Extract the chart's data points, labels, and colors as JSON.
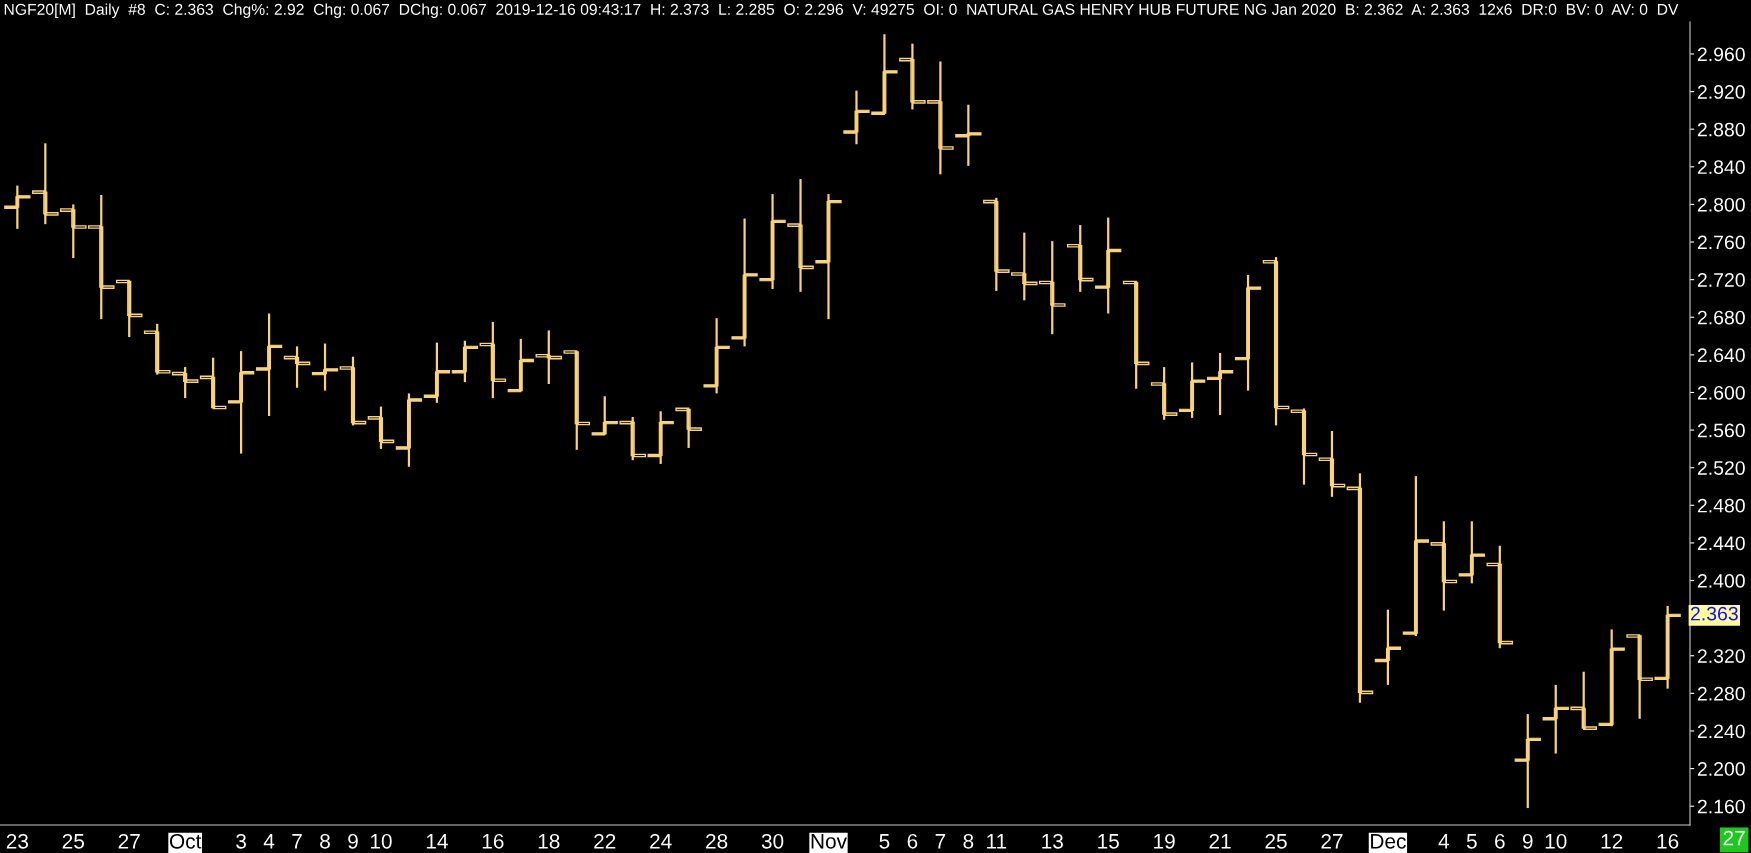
{
  "chart_data": {
    "type": "candlestick",
    "title": "NGF20[M]  Daily  #8  C: 2.363  Chg%: 2.92  Chg: 0.067  DChg: 0.067  2019-12-16 09:43:17  H: 2.373  L: 2.285  O: 2.296  V: 49275  OI: 0  NATURAL GAS HENRY HUB FUTURE NG Jan 2020  B: 2.362  A: 2.363  12x6  DR:0  BV: 0  AV: 0  DV",
    "categories": [
      "23",
      null,
      "25",
      null,
      "27",
      null,
      "Oct",
      null,
      "3",
      "4",
      "7",
      "8",
      "9",
      "10",
      null,
      "14",
      null,
      "16",
      null,
      "18",
      null,
      "22",
      null,
      "24",
      null,
      "28",
      null,
      "30",
      null,
      "Nov",
      null,
      "5",
      "6",
      "7",
      "8",
      "11",
      null,
      "13",
      null,
      "15",
      null,
      "19",
      null,
      "21",
      null,
      "25",
      null,
      "27",
      null,
      "Dec",
      null,
      "4",
      "5",
      "6",
      "9",
      "10",
      null,
      "12",
      null,
      "16"
    ],
    "ohlc": [
      [
        2.797,
        2.82,
        2.774,
        2.808
      ],
      [
        2.813,
        2.865,
        2.779,
        2.79
      ],
      [
        2.794,
        2.8,
        2.743,
        2.776
      ],
      [
        2.776,
        2.81,
        2.678,
        2.712
      ],
      [
        2.718,
        2.718,
        2.659,
        2.682
      ],
      [
        2.664,
        2.673,
        2.619,
        2.622
      ],
      [
        2.62,
        2.627,
        2.594,
        2.612
      ],
      [
        2.616,
        2.637,
        2.584,
        2.584
      ],
      [
        2.59,
        2.644,
        2.535,
        2.621
      ],
      [
        2.625,
        2.684,
        2.575,
        2.649
      ],
      [
        2.637,
        2.649,
        2.605,
        2.631
      ],
      [
        2.62,
        2.652,
        2.602,
        2.624
      ],
      [
        2.626,
        2.638,
        2.565,
        2.568
      ],
      [
        2.573,
        2.585,
        2.54,
        2.548
      ],
      [
        2.541,
        2.599,
        2.521,
        2.592
      ],
      [
        2.596,
        2.653,
        2.589,
        2.622
      ],
      [
        2.622,
        2.655,
        2.611,
        2.648
      ],
      [
        2.651,
        2.675,
        2.594,
        2.613
      ],
      [
        2.602,
        2.657,
        2.602,
        2.634
      ],
      [
        2.639,
        2.666,
        2.609,
        2.637
      ],
      [
        2.643,
        2.643,
        2.539,
        2.567
      ],
      [
        2.556,
        2.596,
        2.556,
        2.568
      ],
      [
        2.568,
        2.574,
        2.528,
        2.533
      ],
      [
        2.533,
        2.58,
        2.524,
        2.568
      ],
      [
        2.582,
        2.582,
        2.541,
        2.561
      ],
      [
        2.607,
        2.679,
        2.599,
        2.648
      ],
      [
        2.658,
        2.785,
        2.649,
        2.725
      ],
      [
        2.72,
        2.811,
        2.71,
        2.782
      ],
      [
        2.778,
        2.827,
        2.707,
        2.733
      ],
      [
        2.739,
        2.811,
        2.678,
        2.803
      ],
      [
        2.877,
        2.921,
        2.864,
        2.899
      ],
      [
        2.897,
        2.981,
        2.897,
        2.941
      ],
      [
        2.954,
        2.971,
        2.901,
        2.909
      ],
      [
        2.909,
        2.952,
        2.832,
        2.86
      ],
      [
        2.873,
        2.906,
        2.841,
        2.875
      ],
      [
        2.803,
        2.807,
        2.708,
        2.729
      ],
      [
        2.726,
        2.77,
        2.698,
        2.716
      ],
      [
        2.717,
        2.761,
        2.662,
        2.693
      ],
      [
        2.756,
        2.778,
        2.707,
        2.72
      ],
      [
        2.712,
        2.786,
        2.684,
        2.751
      ],
      [
        2.717,
        2.717,
        2.604,
        2.631
      ],
      [
        2.609,
        2.627,
        2.571,
        2.577
      ],
      [
        2.581,
        2.632,
        2.573,
        2.612
      ],
      [
        2.615,
        2.642,
        2.576,
        2.622
      ],
      [
        2.636,
        2.725,
        2.602,
        2.711
      ],
      [
        2.739,
        2.744,
        2.565,
        2.584
      ],
      [
        2.58,
        2.583,
        2.502,
        2.534
      ],
      [
        2.529,
        2.559,
        2.489,
        2.501
      ],
      [
        2.498,
        2.514,
        2.27,
        2.281
      ],
      [
        2.315,
        2.369,
        2.289,
        2.328
      ],
      [
        2.344,
        2.511,
        2.341,
        2.442
      ],
      [
        2.439,
        2.463,
        2.368,
        2.399
      ],
      [
        2.406,
        2.463,
        2.397,
        2.427
      ],
      [
        2.417,
        2.437,
        2.328,
        2.334
      ],
      [
        2.209,
        2.258,
        2.158,
        2.231
      ],
      [
        2.253,
        2.289,
        2.216,
        2.264
      ],
      [
        2.264,
        2.303,
        2.243,
        2.243
      ],
      [
        2.247,
        2.348,
        2.245,
        2.327
      ],
      [
        2.341,
        2.341,
        2.253,
        2.295
      ],
      [
        2.296,
        2.373,
        2.285,
        2.363
      ]
    ],
    "color": "#f9d27c",
    "ylim": [
      2.14,
      2.994
    ],
    "yticks": [
      {
        "value": 2.16,
        "label": "2.160"
      },
      {
        "value": 2.2,
        "label": "2.200"
      },
      {
        "value": 2.24,
        "label": "2.240"
      },
      {
        "value": 2.28,
        "label": "2.280"
      },
      {
        "value": 2.32,
        "label": "2.320"
      },
      {
        "value": 2.36,
        "label": null
      },
      {
        "value": 2.4,
        "label": "2.400"
      },
      {
        "value": 2.44,
        "label": "2.440"
      },
      {
        "value": 2.48,
        "label": "2.480"
      },
      {
        "value": 2.52,
        "label": "2.520"
      },
      {
        "value": 2.56,
        "label": "2.560"
      },
      {
        "value": 2.6,
        "label": "2.600"
      },
      {
        "value": 2.64,
        "label": "2.640"
      },
      {
        "value": 2.68,
        "label": "2.680"
      },
      {
        "value": 2.72,
        "label": "2.720"
      },
      {
        "value": 2.76,
        "label": "2.760"
      },
      {
        "value": 2.8,
        "label": "2.800"
      },
      {
        "value": 2.84,
        "label": "2.840"
      },
      {
        "value": 2.88,
        "label": "2.880"
      },
      {
        "value": 2.92,
        "label": "2.920"
      },
      {
        "value": 2.96,
        "label": "2.960"
      }
    ],
    "annotations": [
      "2.363",
      "27"
    ],
    "grid": false
  }
}
